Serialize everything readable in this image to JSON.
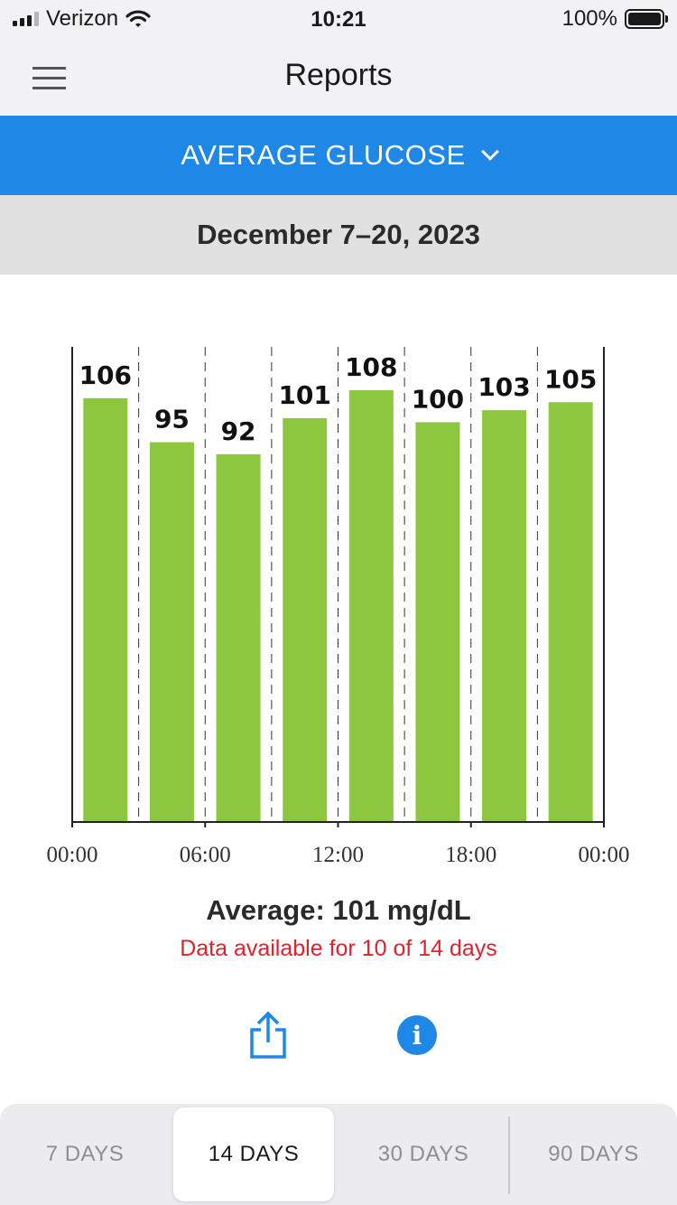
{
  "status_bar": {
    "carrier": "Verizon",
    "time": "10:21",
    "battery": "100%"
  },
  "header": {
    "title": "Reports",
    "menu_icon": "hamburger-menu-icon"
  },
  "report_selector": {
    "label": "AVERAGE GLUCOSE",
    "icon": "chevron-down-icon"
  },
  "date_range": "December 7–20, 2023",
  "chart_data": {
    "type": "bar",
    "unit": "mg/dL",
    "x_ticks": [
      "00:00",
      "06:00",
      "12:00",
      "18:00",
      "00:00"
    ],
    "values": [
      106,
      95,
      92,
      101,
      108,
      100,
      103,
      105
    ],
    "bar_color": "#8dc63f",
    "ylim": [
      0,
      108
    ],
    "grid": "dashed vertical lines between bars",
    "xlim_hours": [
      0,
      24
    ]
  },
  "summary": {
    "average": "Average: 101 mg/dL",
    "availability": "Data available for 10 of 14 days"
  },
  "actions": {
    "share_icon": "share-icon",
    "info_icon": "info-icon",
    "info_glyph": "i"
  },
  "range_tabs": [
    {
      "label": "7 DAYS",
      "active": false
    },
    {
      "label": "14 DAYS",
      "active": true
    },
    {
      "label": "30 DAYS",
      "active": false
    },
    {
      "label": "90 DAYS",
      "active": false
    }
  ],
  "colors": {
    "accent": "#1f87e5",
    "bar": "#8dc63f",
    "warning": "#e0222f"
  }
}
